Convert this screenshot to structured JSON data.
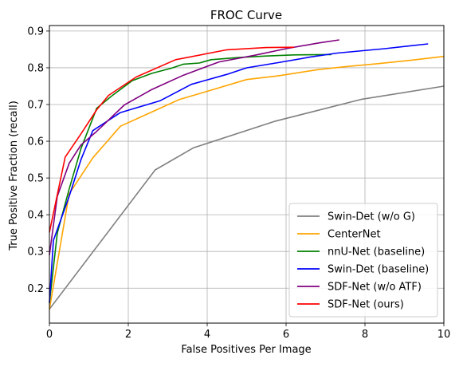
{
  "chart_data": {
    "type": "line",
    "title": "FROC Curve",
    "xlabel": "False Positives Per Image",
    "ylabel": "True Positive Fraction (recall)",
    "xlim": [
      0,
      10
    ],
    "ylim": [
      0.105,
      0.915
    ],
    "xticks": [
      0,
      2,
      4,
      6,
      8,
      10
    ],
    "yticks": [
      0.2,
      0.3,
      0.4,
      0.5,
      0.6,
      0.7,
      0.8,
      0.9
    ],
    "grid": true,
    "legend_position": "lower-right",
    "series": [
      {
        "name": "Swin-Det (w/o G)",
        "color": "#808080",
        "x": [
          0,
          2.68,
          3.65,
          5.7,
          7.9,
          10
        ],
        "y": [
          0.143,
          0.522,
          0.582,
          0.654,
          0.714,
          0.75
        ]
      },
      {
        "name": "CenterNet",
        "color": "#FFA500",
        "x": [
          0,
          0.5,
          1.1,
          1.8,
          2.5,
          3.3,
          4.1,
          5.0,
          5.8,
          6.8,
          7.5,
          8.3,
          9.2,
          10
        ],
        "y": [
          0.143,
          0.457,
          0.555,
          0.641,
          0.675,
          0.714,
          0.739,
          0.768,
          0.778,
          0.795,
          0.803,
          0.811,
          0.821,
          0.831
        ]
      },
      {
        "name": "nnU-Net (baseline)",
        "color": "#008000",
        "x": [
          0,
          0.2,
          0.5,
          0.8,
          1.2,
          1.6,
          2.1,
          2.6,
          3.1,
          3.4,
          3.8,
          4.1,
          4.8,
          5.5,
          6.2,
          7.0,
          7.15
        ],
        "y": [
          0.16,
          0.35,
          0.47,
          0.58,
          0.69,
          0.725,
          0.765,
          0.785,
          0.799,
          0.81,
          0.813,
          0.822,
          0.828,
          0.832,
          0.835,
          0.836,
          0.836
        ]
      },
      {
        "name": "Swin-Det (baseline)",
        "color": "#0000FF",
        "x": [
          0,
          0.1,
          0.5,
          0.8,
          1.1,
          1.8,
          2.8,
          3.6,
          4.5,
          5.0,
          5.8,
          6.6,
          7.3,
          8.5,
          9.6
        ],
        "y": [
          0.16,
          0.33,
          0.45,
          0.55,
          0.629,
          0.678,
          0.71,
          0.755,
          0.782,
          0.8,
          0.814,
          0.829,
          0.84,
          0.852,
          0.865
        ]
      },
      {
        "name": "SDF-Net (w/o ATF)",
        "color": "#800080",
        "x": [
          0,
          0.2,
          0.5,
          0.8,
          1.2,
          1.9,
          2.6,
          3.4,
          4.3,
          5.2,
          6.0,
          6.8,
          7.35
        ],
        "y": [
          0.29,
          0.45,
          0.54,
          0.59,
          0.627,
          0.699,
          0.741,
          0.78,
          0.816,
          0.834,
          0.852,
          0.867,
          0.876
        ]
      },
      {
        "name": "SDF-Net (ours)",
        "color": "#FF0000",
        "x": [
          0,
          0.4,
          0.8,
          1.2,
          1.5,
          2.2,
          3.2,
          4.5,
          5.5,
          6.2
        ],
        "y": [
          0.352,
          0.557,
          0.62,
          0.686,
          0.725,
          0.775,
          0.822,
          0.849,
          0.855,
          0.856
        ]
      }
    ]
  }
}
